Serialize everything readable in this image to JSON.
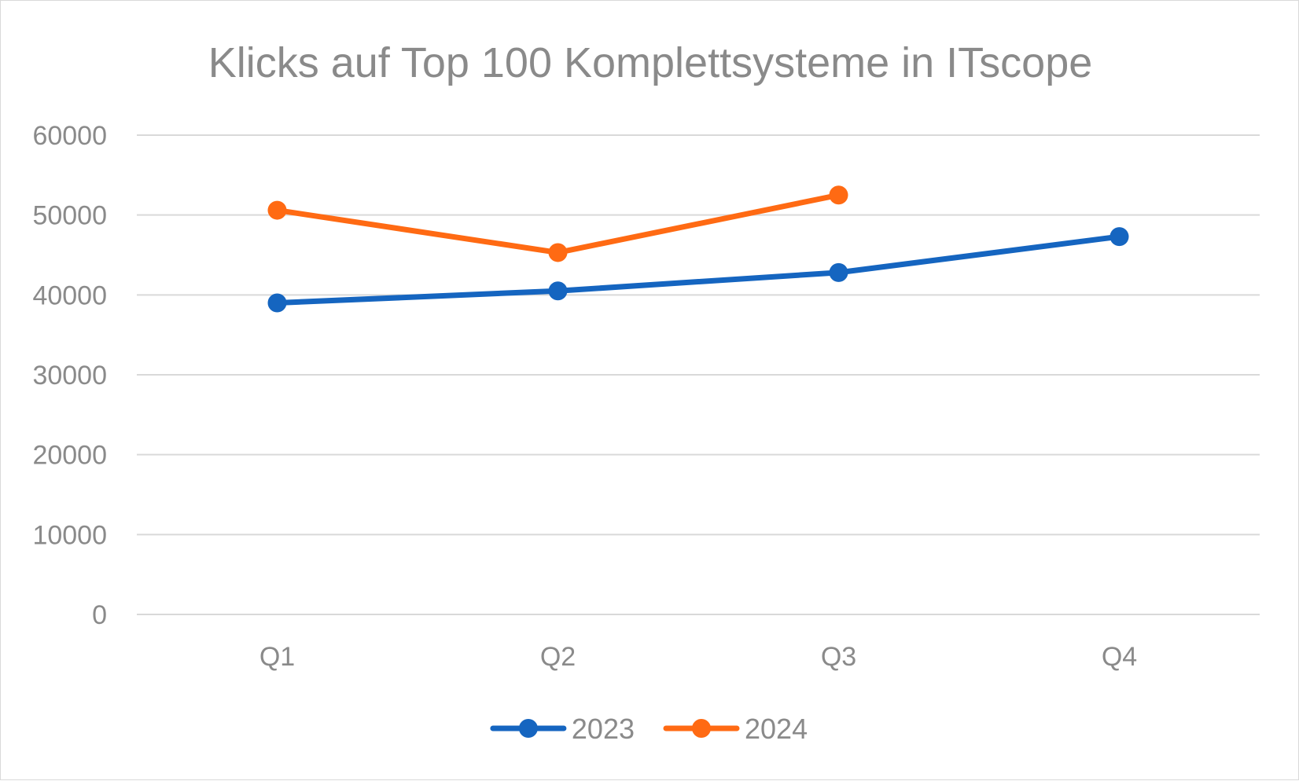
{
  "chart_data": {
    "type": "line",
    "title": "Klicks auf Top 100 Komplettsysteme in ITscope",
    "xlabel": "",
    "ylabel": "",
    "categories": [
      "Q1",
      "Q2",
      "Q3",
      "Q4"
    ],
    "y_ticks": [
      "0",
      "10000",
      "20000",
      "30000",
      "40000",
      "50000",
      "60000"
    ],
    "ylim": [
      0,
      60000
    ],
    "grid": true,
    "legend_position": "bottom",
    "series": [
      {
        "name": "2023",
        "color": "#1565c0",
        "values": [
          39000,
          40500,
          42800,
          47300
        ]
      },
      {
        "name": "2024",
        "color": "#ff6a13",
        "values": [
          50600,
          45300,
          52500,
          null
        ]
      }
    ]
  }
}
